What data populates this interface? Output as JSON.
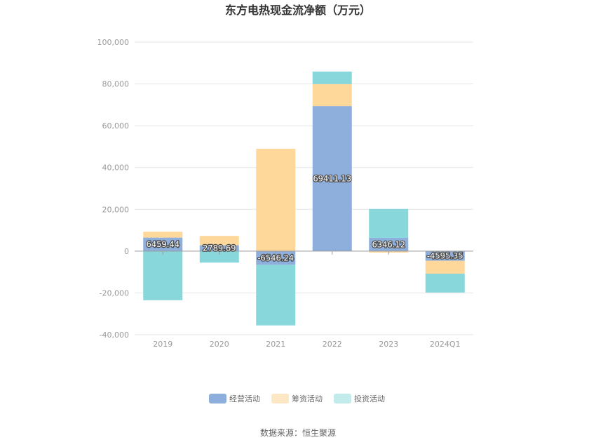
{
  "chart_data": {
    "type": "bar",
    "stacked": true,
    "title": "东方电热现金流净额（万元）",
    "categories": [
      "2019",
      "2020",
      "2021",
      "2022",
      "2023",
      "2024Q1"
    ],
    "series": [
      {
        "name": "经营活动",
        "color": "#8eaedb",
        "values": [
          6459.44,
          2789.69,
          -6546.24,
          69411.13,
          6346.12,
          -4595.35
        ],
        "labels": [
          "6459.44",
          "2789.69",
          "-6546.24",
          "69411.13",
          "6346.12",
          "-4595.35"
        ]
      },
      {
        "name": "筹资活动",
        "color": "#fed89b",
        "values": [
          2800,
          4500,
          49000,
          10500,
          -700,
          -6200
        ]
      },
      {
        "name": "投资活动",
        "color": "#88d7da",
        "values": [
          -23500,
          -5500,
          -29000,
          6000,
          13800,
          -9000
        ]
      }
    ],
    "ylim": [
      -40000,
      100000
    ],
    "yticks": [
      -40000,
      -20000,
      0,
      20000,
      40000,
      60000,
      80000,
      100000
    ],
    "ytick_labels": [
      "-40,000",
      "-20,000",
      "0",
      "20,000",
      "40,000",
      "60,000",
      "80,000",
      "100,000"
    ],
    "grid": true,
    "legend_position": "bottom",
    "legend_colors": [
      "#8eaedb",
      "#fee7c3",
      "#c3ebec"
    ]
  },
  "source_text": "数据来源：恒生聚源"
}
